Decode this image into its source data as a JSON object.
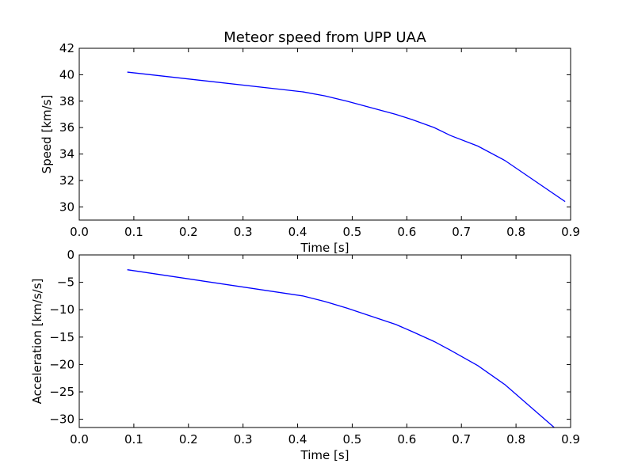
{
  "chart_data": [
    {
      "type": "line",
      "title": "Meteor speed from  UPP UAA",
      "xlabel": "Time [s]",
      "ylabel": "Speed [km/s]",
      "xlim": [
        0.0,
        0.9
      ],
      "ylim": [
        29,
        42
      ],
      "xticks": [
        "0.0",
        "0.1",
        "0.2",
        "0.3",
        "0.4",
        "0.5",
        "0.6",
        "0.7",
        "0.8",
        "0.9"
      ],
      "yticks": [
        "30",
        "32",
        "34",
        "36",
        "38",
        "40",
        "42"
      ],
      "color": "#0000ff",
      "series": [
        {
          "x": [
            0.088,
            0.41,
            0.45,
            0.49,
            0.58,
            0.61,
            0.65,
            0.68,
            0.73,
            0.78,
            0.89
          ],
          "y": [
            40.2,
            38.7,
            38.4,
            38.0,
            37.0,
            36.6,
            36.0,
            35.4,
            34.6,
            33.5,
            30.4
          ]
        }
      ]
    },
    {
      "type": "line",
      "title": "",
      "xlabel": "Time [s]",
      "ylabel": "Acceleration [km/s/s]",
      "xlim": [
        0.0,
        0.9
      ],
      "ylim": [
        -31.5,
        0
      ],
      "xticks": [
        "0.0",
        "0.1",
        "0.2",
        "0.3",
        "0.4",
        "0.5",
        "0.6",
        "0.7",
        "0.8",
        "0.9"
      ],
      "yticks": [
        "0",
        "−5",
        "−10",
        "−15",
        "−20",
        "−25",
        "−30"
      ],
      "color": "#0000ff",
      "series": [
        {
          "x": [
            0.088,
            0.41,
            0.45,
            0.49,
            0.58,
            0.61,
            0.65,
            0.68,
            0.73,
            0.78,
            0.87
          ],
          "y": [
            -2.7,
            -7.5,
            -8.5,
            -9.7,
            -12.7,
            -14.0,
            -15.8,
            -17.4,
            -20.2,
            -23.7,
            -31.5
          ]
        }
      ]
    }
  ]
}
